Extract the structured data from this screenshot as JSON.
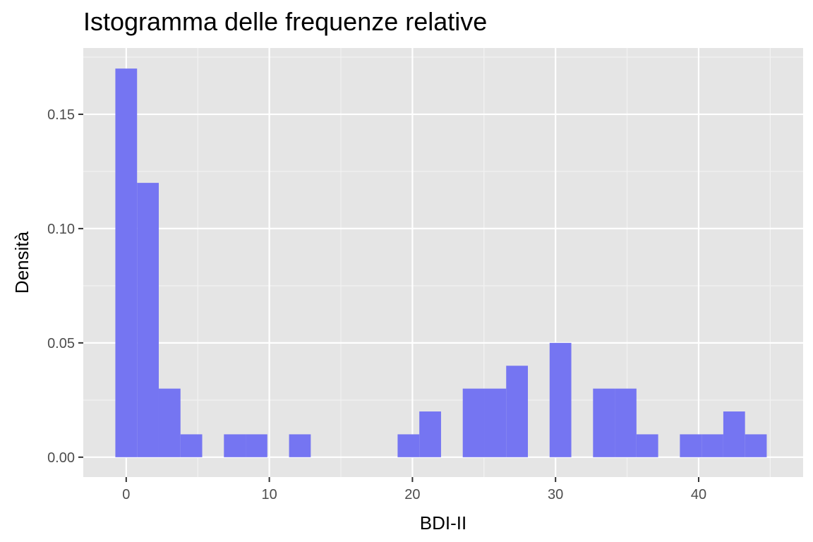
{
  "chart_data": {
    "type": "bar",
    "title": "Istogramma delle frequenze relative",
    "xlabel": "BDI-II",
    "ylabel": "Densità",
    "xlim": [
      -3,
      47.3
    ],
    "ylim": [
      -0.0087,
      0.179
    ],
    "x_ticks": [
      0,
      10,
      20,
      30,
      40
    ],
    "x_tick_labels": [
      "0",
      "10",
      "20",
      "30",
      "40"
    ],
    "y_ticks": [
      0,
      0.05,
      0.1,
      0.15
    ],
    "y_tick_labels": [
      "0.00",
      "0.05",
      "0.10",
      "0.15"
    ],
    "bin_width": 1.5172,
    "bin_start": -0.7586,
    "bin_values": [
      0.17,
      0.12,
      0.03,
      0.01,
      0,
      0.01,
      0.01,
      0,
      0.01,
      0,
      0,
      0,
      0,
      0.01,
      0.02,
      0,
      0.03,
      0.03,
      0.04,
      0,
      0.05,
      0,
      0.03,
      0.03,
      0.01,
      0,
      0.01,
      0.01,
      0.02,
      0.01
    ],
    "bar_color": "#7575f2",
    "panel_background": "#e5e5e5",
    "grid": true,
    "legend": "none"
  }
}
